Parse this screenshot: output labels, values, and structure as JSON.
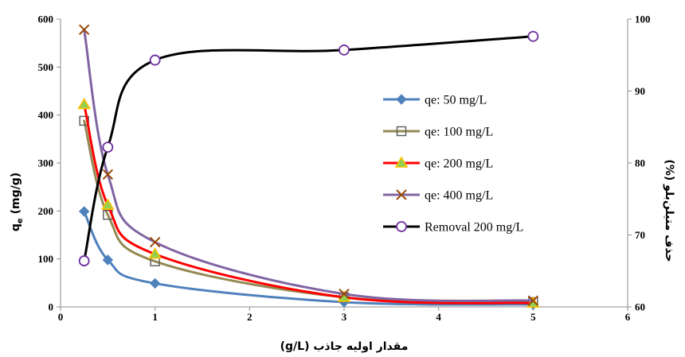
{
  "chart_data": {
    "type": "line",
    "xlabel": "مقدار اولیه جاذب (g/L)",
    "ylabel": {
      "main": "q",
      "sub": "e",
      "unit": " (mg/g)"
    },
    "y2label": "حذف متیلن‌بلو (%)",
    "xlim": [
      0,
      6
    ],
    "ylim": [
      0,
      600
    ],
    "y2lim": [
      60,
      100
    ],
    "xticks": [
      "0",
      "1",
      "2",
      "3",
      "4",
      "5",
      "6"
    ],
    "yticks": [
      "0",
      "100",
      "200",
      "300",
      "400",
      "500",
      "600"
    ],
    "y2ticks": [
      "60",
      "70",
      "80",
      "90",
      "100"
    ],
    "grid": false,
    "legend_position": "center-right",
    "series": [
      {
        "name": "qe: 50 mg/L",
        "axis": "left",
        "color": "#4f81bd",
        "marker": "diamond",
        "marker_fill": "#4f81bd",
        "marker_stroke": "#4f81bd",
        "x": [
          0.25,
          0.5,
          1,
          3,
          5
        ],
        "y": [
          199,
          98,
          49,
          10,
          5
        ]
      },
      {
        "name": "qe: 100 mg/L",
        "axis": "left",
        "color": "#948a54",
        "marker": "square",
        "marker_fill": "none",
        "marker_stroke": "#595959",
        "x": [
          0.25,
          0.5,
          1,
          3,
          5
        ],
        "y": [
          388,
          192,
          95,
          20,
          10
        ]
      },
      {
        "name": "qe: 200 mg/L",
        "axis": "left",
        "color": "#ff0000",
        "marker": "triangle",
        "marker_fill": "#92d050",
        "marker_stroke": "#ffc000",
        "x": [
          0.25,
          0.5,
          1,
          3,
          5
        ],
        "y": [
          422,
          212,
          110,
          20,
          8
        ]
      },
      {
        "name": "qe: 400 mg/L",
        "axis": "left",
        "color": "#8064a2",
        "marker": "x",
        "marker_fill": "none",
        "marker_stroke": "#984807",
        "x": [
          0.25,
          0.5,
          1,
          3,
          5
        ],
        "y": [
          578,
          276,
          135,
          27,
          13
        ]
      },
      {
        "name": "Removal 200 mg/L",
        "axis": "right",
        "color": "#000000",
        "marker": "circle",
        "marker_fill": "#ffffff",
        "marker_stroke": "#7030a0",
        "x": [
          0.25,
          0.5,
          1,
          3,
          5
        ],
        "y": [
          66.4,
          82.2,
          94.3,
          95.7,
          97.6
        ]
      }
    ]
  }
}
